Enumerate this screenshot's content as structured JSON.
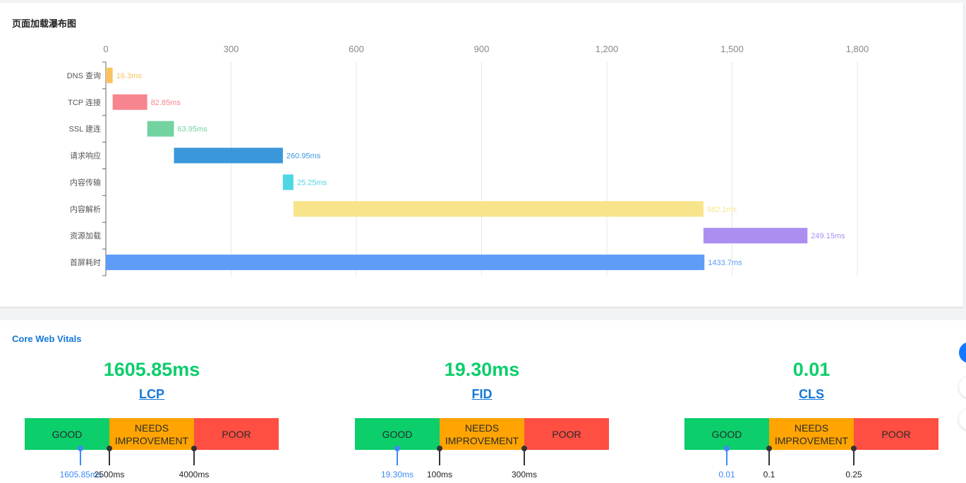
{
  "waterfall": {
    "title": "页面加载瀑布图",
    "chart_data": {
      "type": "bar",
      "subtype": "waterfall",
      "orientation": "horizontal",
      "categories": [
        "DNS 查询",
        "TCP 连接",
        "SSL 建连",
        "请求响应",
        "内容传输",
        "内容解析",
        "资源加载",
        "首屏耗时"
      ],
      "starts": [
        0,
        16.3,
        99.15,
        163.1,
        424.05,
        449.3,
        1431.4,
        0
      ],
      "values": [
        16.3,
        82.85,
        63.95,
        260.95,
        25.25,
        982.1,
        249.15,
        1433.7
      ],
      "labels": [
        "16.3ms",
        "82.85ms",
        "63.95ms",
        "260.95ms",
        "25.25ms",
        "982.1ms",
        "249.15ms",
        "1433.7ms"
      ],
      "colors": [
        "#f8c463",
        "#f7858f",
        "#72d3a0",
        "#3a98da",
        "#4fd6e3",
        "#f8e48a",
        "#ab8ef0",
        "#5e9cf8"
      ],
      "x_ticks": [
        "0",
        "300",
        "600",
        "900",
        "1,200",
        "1,500",
        "1,800"
      ],
      "x_tick_values": [
        0,
        300,
        600,
        900,
        1200,
        1500,
        1800
      ],
      "xlim": [
        0,
        1800
      ],
      "axis_position": "top",
      "grid": true
    }
  },
  "vitals": {
    "title": "Core Web Vitals",
    "items": [
      {
        "value": "1605.85ms",
        "name": "LCP",
        "bands": [
          "GOOD",
          "NEEDS IMPROVEMENT",
          "POOR"
        ],
        "current_label": "1605.85ms",
        "current_fraction": 0.1606,
        "thresholds": [
          "2500ms",
          "4000ms"
        ]
      },
      {
        "value": "19.30ms",
        "name": "FID",
        "bands": [
          "GOOD",
          "NEEDS IMPROVEMENT",
          "POOR"
        ],
        "current_label": "19.30ms",
        "current_fraction": 0.0,
        "thresholds": [
          "100ms",
          "300ms"
        ]
      },
      {
        "value": "0.01",
        "name": "CLS",
        "bands": [
          "GOOD",
          "NEEDS IMPROVEMENT",
          "POOR"
        ],
        "current_label": "0.01",
        "current_fraction": 0.0,
        "thresholds": [
          "0.1",
          "0.25"
        ]
      }
    ],
    "colors": {
      "good": "#0cce6b",
      "needs_improvement": "#ffa400",
      "poor": "#ff4e42",
      "value": "#0cce6b",
      "link": "#1677d8",
      "marker": "#3d8af7"
    }
  },
  "side_buttons": [
    "primary-action",
    "secondary-action",
    "tertiary-action"
  ]
}
